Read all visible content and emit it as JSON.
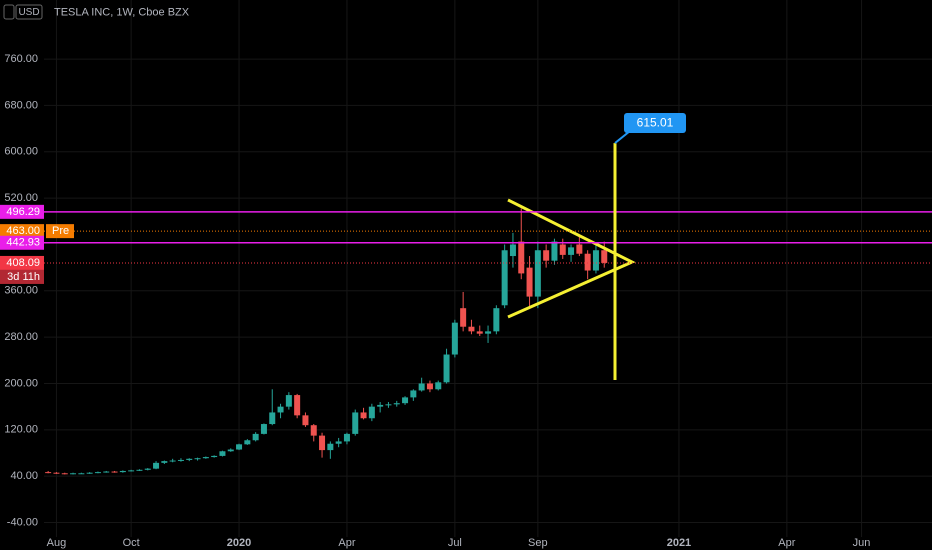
{
  "chart_data": {
    "type": "candlestick",
    "title": "TESLA INC, 1W, Cboe BZX",
    "currency": "USD",
    "categories": [
      null,
      "Aug",
      null,
      null,
      null,
      null,
      null,
      null,
      null,
      null,
      "Oct",
      null,
      null,
      null,
      null,
      null,
      null,
      null,
      null,
      null,
      null,
      null,
      null,
      "2020",
      null,
      null,
      null,
      null,
      null,
      null,
      null,
      null,
      null,
      null,
      null,
      null,
      "Apr",
      null,
      null,
      null,
      null,
      null,
      null,
      null,
      null,
      null,
      null,
      null,
      null,
      "Jul",
      null,
      null,
      null,
      null,
      null,
      null,
      null,
      null,
      null,
      "Sep",
      null,
      null,
      null,
      null,
      null,
      null,
      null,
      null,
      null,
      null,
      null,
      null,
      null,
      null,
      null,
      null,
      "2021",
      null,
      null,
      null,
      null,
      null,
      null,
      null,
      null,
      null,
      null,
      null,
      null,
      "Apr",
      null,
      null,
      null,
      null,
      null,
      null,
      null,
      null,
      "Jun",
      null,
      null,
      null,
      null,
      null,
      null,
      null,
      null
    ],
    "open": [
      47,
      46,
      45,
      44,
      45,
      45,
      46,
      47,
      48,
      47,
      49,
      50,
      51,
      53,
      63,
      66,
      67,
      68,
      70,
      71,
      73,
      75,
      83,
      86,
      95,
      102,
      113,
      130,
      150,
      160,
      180,
      145,
      128,
      110,
      85,
      96,
      100,
      113,
      150,
      140,
      160,
      163,
      164,
      166,
      176,
      188,
      200,
      190,
      202,
      250,
      330,
      298,
      290,
      286,
      290,
      335,
      420,
      445,
      400,
      350,
      430,
      412,
      440,
      422,
      440,
      424,
      395,
      430,
      null,
      null,
      null,
      null,
      null,
      null,
      null,
      null,
      null,
      null,
      null,
      null,
      null,
      null,
      null,
      null,
      null,
      null,
      null,
      null,
      null,
      null,
      null,
      null,
      null,
      null,
      null,
      null,
      null,
      null,
      null,
      null,
      null,
      null,
      null,
      null,
      null,
      null,
      null
    ],
    "high": [
      49,
      47,
      46,
      46,
      46,
      47,
      48,
      49,
      49,
      50,
      51,
      52,
      54,
      66,
      67,
      70,
      71,
      71,
      72,
      74,
      76,
      84,
      88,
      96,
      104,
      116,
      131,
      190,
      165,
      185,
      182,
      150,
      130,
      115,
      100,
      106,
      115,
      155,
      158,
      165,
      168,
      168,
      170,
      178,
      190,
      210,
      205,
      205,
      260,
      310,
      358,
      310,
      300,
      300,
      335,
      440,
      460,
      502,
      420,
      445,
      440,
      450,
      450,
      440,
      455,
      430,
      440,
      445,
      null,
      null,
      null,
      null,
      null,
      null,
      null,
      null,
      null,
      null,
      null,
      null,
      null,
      null,
      null,
      null,
      null,
      null,
      null,
      null,
      null,
      null,
      null,
      null,
      null,
      null,
      null,
      null,
      null,
      null,
      null,
      null,
      null,
      null,
      null,
      null,
      null,
      null,
      null
    ],
    "low": [
      45,
      44,
      43,
      43,
      44,
      44,
      45,
      46,
      46,
      46,
      48,
      49,
      50,
      52,
      61,
      64,
      65,
      66,
      67,
      70,
      72,
      74,
      82,
      85,
      94,
      100,
      112,
      128,
      140,
      155,
      140,
      125,
      100,
      72,
      70,
      90,
      95,
      110,
      138,
      135,
      150,
      158,
      160,
      163,
      170,
      186,
      185,
      188,
      200,
      245,
      290,
      285,
      282,
      270,
      285,
      330,
      400,
      380,
      330,
      330,
      400,
      405,
      415,
      410,
      420,
      380,
      390,
      400,
      null,
      null,
      null,
      null,
      null,
      null,
      null,
      null,
      null,
      null,
      null,
      null,
      null,
      null,
      null,
      null,
      null,
      null,
      null,
      null,
      null,
      null,
      null,
      null,
      null,
      null,
      null,
      null,
      null,
      null,
      null,
      null,
      null,
      null,
      null,
      null,
      null,
      null,
      null
    ],
    "close": [
      46,
      45,
      44,
      45,
      45,
      46,
      47,
      48,
      47,
      49,
      50,
      51,
      53,
      63,
      66,
      67,
      68,
      70,
      71,
      73,
      75,
      83,
      86,
      95,
      102,
      113,
      130,
      150,
      160,
      180,
      145,
      128,
      110,
      85,
      96,
      100,
      113,
      150,
      140,
      160,
      163,
      164,
      166,
      176,
      188,
      200,
      190,
      202,
      250,
      305,
      298,
      290,
      286,
      290,
      330,
      430,
      440,
      390,
      350,
      430,
      412,
      445,
      422,
      435,
      424,
      395,
      430,
      408.09,
      null,
      null,
      null,
      null,
      null,
      null,
      null,
      null,
      null,
      null,
      null,
      null,
      null,
      null,
      null,
      null,
      null,
      null,
      null,
      null,
      null,
      null,
      null,
      null,
      null,
      null,
      null,
      null,
      null,
      null,
      null,
      null,
      null,
      null,
      null,
      null,
      null,
      null,
      null
    ],
    "up_color": "#26a69a",
    "down_color": "#ef5350",
    "ylim": [
      -65,
      862
    ],
    "yticks": [
      {
        "value": -40,
        "label": "-40.00"
      },
      {
        "value": 40,
        "label": "40.00"
      },
      {
        "value": 120,
        "label": "120.00"
      },
      {
        "value": 200,
        "label": "200.00"
      },
      {
        "value": 280,
        "label": "280.00"
      },
      {
        "value": 360,
        "label": "360.00"
      },
      {
        "value": 520,
        "label": "520.00"
      },
      {
        "value": 600,
        "label": "600.00"
      },
      {
        "value": 680,
        "label": "680.00"
      },
      {
        "value": 760,
        "label": "760.00"
      }
    ],
    "grid": true,
    "price_lines": [
      {
        "value": 496.29,
        "label": "496.29",
        "color": "#e91ee9",
        "style": "solid"
      },
      {
        "value": 463,
        "label": "463.00",
        "color": "#f57c00",
        "style": "dotted",
        "tag": "Pre"
      },
      {
        "value": 442.93,
        "label": "442.93",
        "color": "#e91ee9",
        "style": "solid"
      },
      {
        "value": 408.09,
        "label": "408.09",
        "color": "#f23645",
        "style": "dotted",
        "countdown": "3d 11h"
      }
    ],
    "target": {
      "value": 615.01,
      "label": "615.01",
      "color": "#2196f3"
    }
  }
}
